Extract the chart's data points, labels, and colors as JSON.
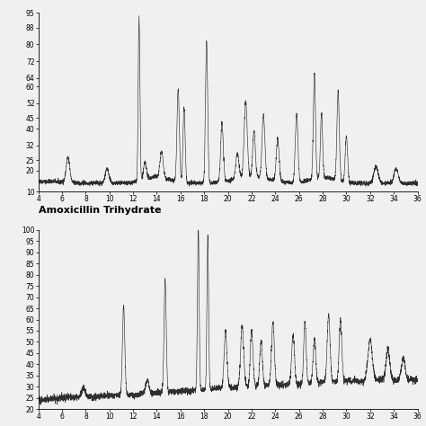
{
  "title2": "Amoxicillin Trihydrate",
  "xmin": 4,
  "xmax": 36,
  "ymin1": 10,
  "ymax1": 95,
  "ymin2": 20,
  "ymax2": 100,
  "yticks1": [
    10,
    20,
    25,
    32,
    40,
    45,
    52,
    60,
    64,
    72,
    80,
    88,
    95
  ],
  "yticks2": [
    20,
    25,
    30,
    35,
    40,
    45,
    50,
    55,
    60,
    65,
    70,
    75,
    80,
    85,
    90,
    95,
    100
  ],
  "xticks": [
    4,
    6,
    8,
    10,
    12,
    14,
    16,
    18,
    20,
    22,
    24,
    26,
    28,
    30,
    32,
    34,
    36
  ],
  "line_color": "#1a1a1a",
  "background_color": "#f0f0f0",
  "tick_fontsize": 5.5,
  "title_fontsize": 8
}
